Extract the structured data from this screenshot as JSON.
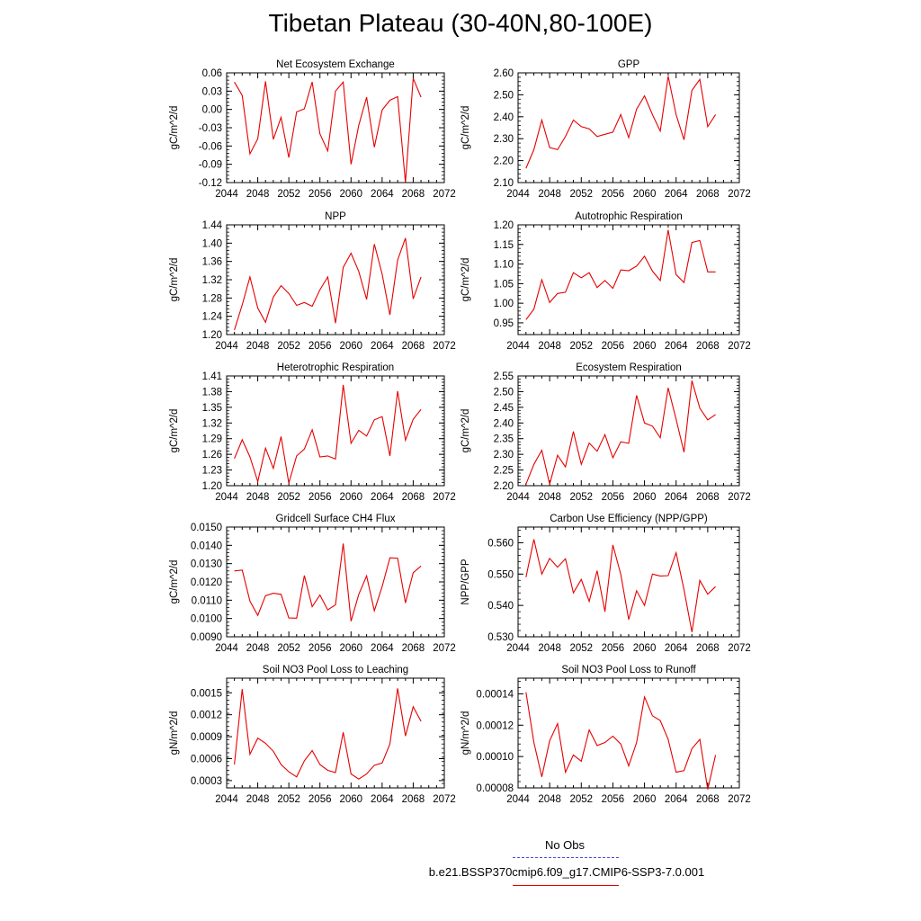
{
  "title": "Tibetan Plateau (30-40N,80-100E)",
  "legend": {
    "obs_label": "No Obs",
    "obs_color": "#4b4bd6",
    "case_label": "b.e21.BSSP370cmip6.f09_g17.CMIP6-SSP3-7.0.001",
    "case_color": "#e60000"
  },
  "chart_data": [
    {
      "type": "line",
      "title": "Net Ecosystem Exchange",
      "ylabel": "gC/m^2/d",
      "xlim": [
        2044,
        2072
      ],
      "ylim": [
        -0.12,
        0.06
      ],
      "xticks": [
        "2044",
        "2048",
        "2052",
        "2056",
        "2060",
        "2064",
        "2068",
        "2072"
      ],
      "yticks": [
        "-0.12",
        "-0.09",
        "-0.06",
        "-0.03",
        "0.00",
        "0.03",
        "0.06"
      ],
      "x": [
        2045,
        2046,
        2047,
        2048,
        2049,
        2050,
        2051,
        2052,
        2053,
        2054,
        2055,
        2056,
        2057,
        2058,
        2059,
        2060,
        2061,
        2062,
        2063,
        2064,
        2065,
        2066,
        2067,
        2068,
        2069
      ],
      "values": [
        0.045,
        0.023,
        -0.073,
        -0.048,
        0.046,
        -0.049,
        -0.013,
        -0.079,
        -0.004,
        0.001,
        0.045,
        -0.04,
        -0.068,
        0.03,
        0.045,
        -0.09,
        -0.026,
        0.02,
        -0.062,
        -0.001,
        0.015,
        0.021,
        -0.12,
        0.051,
        0.02
      ]
    },
    {
      "type": "line",
      "title": "GPP",
      "ylabel": "gC/m^2/d",
      "xlim": [
        2044,
        2072
      ],
      "ylim": [
        2.1,
        2.6
      ],
      "xticks": [
        "2044",
        "2048",
        "2052",
        "2056",
        "2060",
        "2064",
        "2068",
        "2072"
      ],
      "yticks": [
        "2.10",
        "2.20",
        "2.30",
        "2.40",
        "2.50",
        "2.60"
      ],
      "x": [
        2045,
        2046,
        2047,
        2048,
        2049,
        2050,
        2051,
        2052,
        2053,
        2054,
        2055,
        2056,
        2057,
        2058,
        2059,
        2060,
        2061,
        2062,
        2063,
        2064,
        2065,
        2066,
        2067,
        2068,
        2069
      ],
      "values": [
        2.165,
        2.25,
        2.385,
        2.26,
        2.25,
        2.31,
        2.385,
        2.355,
        2.345,
        2.31,
        2.32,
        2.33,
        2.41,
        2.305,
        2.435,
        2.495,
        2.41,
        2.335,
        2.585,
        2.41,
        2.295,
        2.52,
        2.57,
        2.355,
        2.41
      ]
    },
    {
      "type": "line",
      "title": "NPP",
      "ylabel": "gC/m^2/d",
      "xlim": [
        2044,
        2072
      ],
      "ylim": [
        1.2,
        1.44
      ],
      "xticks": [
        "2044",
        "2048",
        "2052",
        "2056",
        "2060",
        "2064",
        "2068",
        "2072"
      ],
      "yticks": [
        "1.20",
        "1.24",
        "1.28",
        "1.32",
        "1.36",
        "1.40",
        "1.44"
      ],
      "x": [
        2045,
        2046,
        2047,
        2048,
        2049,
        2050,
        2051,
        2052,
        2053,
        2054,
        2055,
        2056,
        2057,
        2058,
        2059,
        2060,
        2061,
        2062,
        2063,
        2064,
        2065,
        2066,
        2067,
        2068,
        2069
      ],
      "values": [
        1.21,
        1.265,
        1.326,
        1.258,
        1.227,
        1.282,
        1.307,
        1.29,
        1.264,
        1.27,
        1.262,
        1.298,
        1.326,
        1.225,
        1.347,
        1.378,
        1.338,
        1.277,
        1.398,
        1.332,
        1.243,
        1.363,
        1.411,
        1.278,
        1.326
      ]
    },
    {
      "type": "line",
      "title": "Autotrophic Respiration",
      "ylabel": "gC/m^2/d",
      "xlim": [
        2044,
        2072
      ],
      "ylim": [
        0.92,
        1.2
      ],
      "xticks": [
        "2044",
        "2048",
        "2052",
        "2056",
        "2060",
        "2064",
        "2068",
        "2072"
      ],
      "yticks": [
        "0.95",
        "1.00",
        "1.05",
        "1.10",
        "1.15",
        "1.20"
      ],
      "x": [
        2045,
        2046,
        2047,
        2048,
        2049,
        2050,
        2051,
        2052,
        2053,
        2054,
        2055,
        2056,
        2057,
        2058,
        2059,
        2060,
        2061,
        2062,
        2063,
        2064,
        2065,
        2066,
        2067,
        2068,
        2069
      ],
      "values": [
        0.958,
        0.985,
        1.06,
        1.002,
        1.025,
        1.028,
        1.078,
        1.065,
        1.078,
        1.04,
        1.058,
        1.038,
        1.085,
        1.083,
        1.095,
        1.12,
        1.082,
        1.058,
        1.187,
        1.073,
        1.053,
        1.155,
        1.16,
        1.08,
        1.08
      ]
    },
    {
      "type": "line",
      "title": "Heterotrophic Respiration",
      "ylabel": "gC/m^2/d",
      "xlim": [
        2044,
        2072
      ],
      "ylim": [
        1.2,
        1.41
      ],
      "xticks": [
        "2044",
        "2048",
        "2052",
        "2056",
        "2060",
        "2064",
        "2068",
        "2072"
      ],
      "yticks": [
        "1.20",
        "1.23",
        "1.26",
        "1.29",
        "1.32",
        "1.35",
        "1.38",
        "1.41"
      ],
      "x": [
        2045,
        2046,
        2047,
        2048,
        2049,
        2050,
        2051,
        2052,
        2053,
        2054,
        2055,
        2056,
        2057,
        2058,
        2059,
        2060,
        2061,
        2062,
        2063,
        2064,
        2065,
        2066,
        2067,
        2068,
        2069
      ],
      "values": [
        1.252,
        1.288,
        1.255,
        1.208,
        1.272,
        1.233,
        1.294,
        1.205,
        1.257,
        1.27,
        1.307,
        1.255,
        1.257,
        1.251,
        1.393,
        1.281,
        1.306,
        1.295,
        1.326,
        1.332,
        1.257,
        1.381,
        1.287,
        1.327,
        1.346
      ]
    },
    {
      "type": "line",
      "title": "Ecosystem Respiration",
      "ylabel": "gC/m^2/d",
      "xlim": [
        2044,
        2072
      ],
      "ylim": [
        2.2,
        2.55
      ],
      "xticks": [
        "2044",
        "2048",
        "2052",
        "2056",
        "2060",
        "2064",
        "2068",
        "2072"
      ],
      "yticks": [
        "2.20",
        "2.25",
        "2.30",
        "2.35",
        "2.40",
        "2.45",
        "2.50",
        "2.55"
      ],
      "x": [
        2045,
        2046,
        2047,
        2048,
        2049,
        2050,
        2051,
        2052,
        2053,
        2054,
        2055,
        2056,
        2057,
        2058,
        2059,
        2060,
        2061,
        2062,
        2063,
        2064,
        2065,
        2066,
        2067,
        2068,
        2069
      ],
      "values": [
        2.205,
        2.268,
        2.313,
        2.205,
        2.297,
        2.26,
        2.373,
        2.268,
        2.336,
        2.31,
        2.363,
        2.289,
        2.34,
        2.335,
        2.488,
        2.4,
        2.39,
        2.353,
        2.512,
        2.412,
        2.307,
        2.535,
        2.447,
        2.41,
        2.427
      ]
    },
    {
      "type": "line",
      "title": "Gridcell Surface CH4 Flux",
      "ylabel": "gC/m^2/d",
      "xlim": [
        2044,
        2072
      ],
      "ylim": [
        0.009,
        0.015
      ],
      "xticks": [
        "2044",
        "2048",
        "2052",
        "2056",
        "2060",
        "2064",
        "2068",
        "2072"
      ],
      "yticks": [
        "0.0090",
        "0.0100",
        "0.0110",
        "0.0120",
        "0.0130",
        "0.0140",
        "0.0150"
      ],
      "x": [
        2045,
        2046,
        2047,
        2048,
        2049,
        2050,
        2051,
        2052,
        2053,
        2054,
        2055,
        2056,
        2057,
        2058,
        2059,
        2060,
        2061,
        2062,
        2063,
        2064,
        2065,
        2066,
        2067,
        2068,
        2069
      ],
      "values": [
        0.0126,
        0.01265,
        0.01095,
        0.01017,
        0.01125,
        0.01138,
        0.01132,
        0.01003,
        0.01002,
        0.01235,
        0.01065,
        0.01128,
        0.01047,
        0.01075,
        0.0141,
        0.00985,
        0.01132,
        0.01233,
        0.01042,
        0.01175,
        0.01332,
        0.0133,
        0.01085,
        0.0125,
        0.01287
      ]
    },
    {
      "type": "line",
      "title": "Carbon Use Efficiency (NPP/GPP)",
      "ylabel": "NPP/GPP",
      "xlim": [
        2044,
        2072
      ],
      "ylim": [
        0.53,
        0.565
      ],
      "xticks": [
        "2044",
        "2048",
        "2052",
        "2056",
        "2060",
        "2064",
        "2068",
        "2072"
      ],
      "yticks": [
        "0.530",
        "0.540",
        "0.550",
        "0.560"
      ],
      "x": [
        2045,
        2046,
        2047,
        2048,
        2049,
        2050,
        2051,
        2052,
        2053,
        2054,
        2055,
        2056,
        2057,
        2058,
        2059,
        2060,
        2061,
        2062,
        2063,
        2064,
        2065,
        2066,
        2067,
        2068,
        2069
      ],
      "values": [
        0.549,
        0.5611,
        0.55,
        0.555,
        0.5522,
        0.5549,
        0.544,
        0.5483,
        0.5413,
        0.5511,
        0.538,
        0.5593,
        0.5499,
        0.5355,
        0.5447,
        0.54,
        0.55,
        0.5494,
        0.5495,
        0.5568,
        0.545,
        0.5315,
        0.548,
        0.5436,
        0.546
      ]
    },
    {
      "type": "line",
      "title": "Soil NO3 Pool Loss to Leaching",
      "ylabel": "gN/m^2/d",
      "xlim": [
        2044,
        2072
      ],
      "ylim": [
        0.0002,
        0.0017
      ],
      "xticks": [
        "2044",
        "2048",
        "2052",
        "2056",
        "2060",
        "2064",
        "2068",
        "2072"
      ],
      "yticks": [
        "0.0003",
        "0.0006",
        "0.0009",
        "0.0012",
        "0.0015"
      ],
      "x": [
        2045,
        2046,
        2047,
        2048,
        2049,
        2050,
        2051,
        2052,
        2053,
        2054,
        2055,
        2056,
        2057,
        2058,
        2059,
        2060,
        2061,
        2062,
        2063,
        2064,
        2065,
        2066,
        2067,
        2068,
        2069
      ],
      "values": [
        0.00052,
        0.00155,
        0.00066,
        0.00088,
        0.00081,
        0.0007,
        0.00052,
        0.00042,
        0.00035,
        0.00057,
        0.00071,
        0.00052,
        0.00044,
        0.00041,
        0.00096,
        0.00039,
        0.00032,
        0.00039,
        0.00051,
        0.00054,
        0.0008,
        0.00156,
        0.00091,
        0.00131,
        0.00111
      ]
    },
    {
      "type": "line",
      "title": "Soil NO3 Pool Loss to Runoff",
      "ylabel": "gN/m^2/d",
      "xlim": [
        2044,
        2072
      ],
      "ylim": [
        8e-05,
        0.00015
      ],
      "xticks": [
        "2044",
        "2048",
        "2052",
        "2056",
        "2060",
        "2064",
        "2068",
        "2072"
      ],
      "yticks": [
        "0.00008",
        "0.00010",
        "0.00012",
        "0.00014"
      ],
      "x": [
        2045,
        2046,
        2047,
        2048,
        2049,
        2050,
        2051,
        2052,
        2053,
        2054,
        2055,
        2056,
        2057,
        2058,
        2059,
        2060,
        2061,
        2062,
        2063,
        2064,
        2065,
        2066,
        2067,
        2068,
        2069
      ],
      "values": [
        0.000141,
        0.000109,
        8.7e-05,
        0.00011,
        0.000121,
        9e-05,
        0.000101,
        9.7e-05,
        0.000117,
        0.000107,
        0.000109,
        0.000113,
        0.000108,
        9.4e-05,
        0.000109,
        0.000138,
        0.000126,
        0.000123,
        0.000111,
        9e-05,
        9.1e-05,
        0.000105,
        0.000111,
        7.9e-05,
        0.000101
      ]
    }
  ]
}
